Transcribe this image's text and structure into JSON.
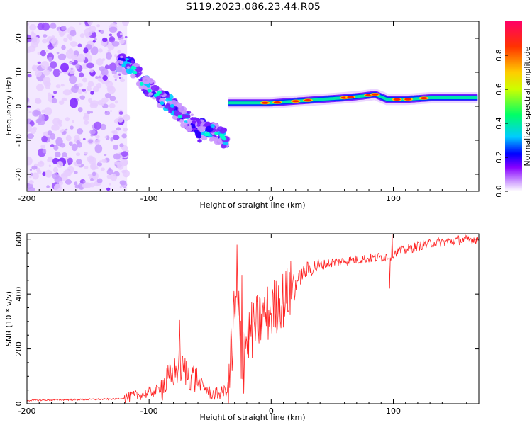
{
  "title": "S119.2023.086.23.44.R05",
  "chart_data": [
    {
      "type": "heatmap",
      "xlabel": "Height of straight line (km)",
      "ylabel": "Frequency (Hz)",
      "xlim": [
        -200,
        170
      ],
      "ylim": [
        -25,
        25
      ],
      "x_ticks": [
        -200,
        -100,
        0,
        100
      ],
      "y_ticks": [
        -20,
        -10,
        0,
        10,
        20
      ],
      "colorbar": {
        "label": "Normalized spectral amplitude",
        "range": [
          0,
          1
        ],
        "ticks": [
          0.0,
          0.2,
          0.4,
          0.6,
          0.8
        ],
        "tick_labels": [
          "0.0",
          "0.2",
          "0.4",
          "0.6",
          "0.8"
        ],
        "colormap": [
          "#ffffff",
          "#cc99ff",
          "#8800ff",
          "#0000ff",
          "#00ccff",
          "#00ff66",
          "#ccff00",
          "#ffcc00",
          "#ff3300",
          "#ff0066"
        ]
      },
      "features": {
        "noise_region_x": [
          -200,
          -118
        ],
        "descending_track": [
          [
            -125,
            13
          ],
          [
            -115,
            12
          ],
          [
            -105,
            7
          ],
          [
            -95,
            4
          ],
          [
            -85,
            1
          ],
          [
            -75,
            -2
          ],
          [
            -65,
            -5
          ],
          [
            -55,
            -7
          ],
          [
            -45,
            -8
          ],
          [
            -35,
            -10
          ]
        ],
        "side_branch": [
          [
            -65,
            -4
          ],
          [
            -58,
            -10
          ]
        ],
        "stable_tone": [
          [
            -35,
            1
          ],
          [
            -20,
            1
          ],
          [
            0,
            1
          ],
          [
            20,
            1.5
          ],
          [
            40,
            2
          ],
          [
            60,
            2.5
          ],
          [
            75,
            3
          ],
          [
            85,
            3.5
          ],
          [
            95,
            2
          ],
          [
            110,
            2
          ],
          [
            130,
            2.5
          ],
          [
            150,
            2.5
          ],
          [
            170,
            2.5
          ]
        ]
      }
    },
    {
      "type": "line",
      "xlabel": "Height of straight line (km)",
      "ylabel": "SNR (10 * v/v)",
      "xlim": [
        -200,
        170
      ],
      "ylim": [
        0,
        620
      ],
      "x_ticks": [
        -200,
        -100,
        0,
        100
      ],
      "y_ticks": [
        0,
        200,
        400,
        600
      ],
      "color": "#ff2222",
      "series": [
        {
          "x": [
            -200,
            -180,
            -160,
            -140,
            -125,
            -115,
            -105,
            -95,
            -85,
            -80,
            -75,
            -70,
            -65,
            -60,
            -55,
            -50,
            -45,
            -40,
            -35,
            -32,
            -30,
            -28,
            -26,
            -24,
            -22,
            -20,
            -15,
            -10,
            -5,
            0,
            5,
            10,
            15,
            20,
            25,
            30,
            40,
            50,
            60,
            70,
            80,
            90,
            98,
            100,
            103,
            110,
            120,
            130,
            140,
            150,
            160,
            170
          ],
          "y": [
            12,
            14,
            15,
            16,
            18,
            25,
            35,
            45,
            80,
            110,
            130,
            120,
            100,
            80,
            60,
            40,
            35,
            40,
            55,
            200,
            300,
            320,
            250,
            200,
            210,
            240,
            270,
            300,
            320,
            340,
            360,
            380,
            410,
            440,
            470,
            490,
            505,
            515,
            520,
            525,
            530,
            535,
            540,
            550,
            555,
            560,
            575,
            585,
            590,
            595,
            598,
            600
          ],
          "spikes": [
            [
              -75,
              305
            ],
            [
              -28,
              580
            ],
            [
              -24,
              470
            ],
            [
              99,
              620
            ],
            [
              97,
              420
            ]
          ]
        }
      ]
    }
  ]
}
